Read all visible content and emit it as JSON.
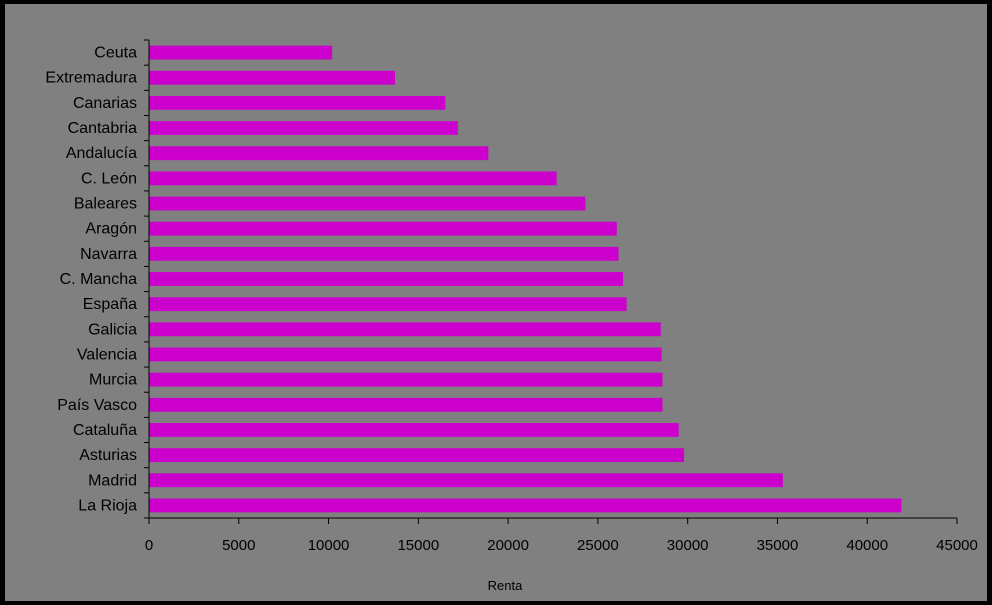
{
  "chart_data": {
    "type": "bar",
    "orientation": "horizontal",
    "categories": [
      "La Rioja",
      "Madrid",
      "Asturias",
      "Cataluña",
      "País Vasco",
      "Murcia",
      "Valencia",
      "Galicia",
      "España",
      "C. Mancha",
      "Navarra",
      "Aragón",
      "Baleares",
      "C. León",
      "Andalucía",
      "Cantabria",
      "Canarias",
      "Extremadura",
      "Ceuta"
    ],
    "values": [
      41900,
      35300,
      29800,
      29500,
      28600,
      28600,
      28550,
      28500,
      26600,
      26400,
      26150,
      26050,
      24300,
      22700,
      18900,
      17200,
      16500,
      13700,
      10200
    ],
    "xlabel": "Renta",
    "ylabel": "",
    "title": "",
    "xlim": [
      0,
      45000
    ],
    "xticks": [
      0,
      5000,
      10000,
      15000,
      20000,
      25000,
      30000,
      35000,
      40000,
      45000
    ],
    "grid": false,
    "legend": "none",
    "colors": {
      "bar": "#CC00CC",
      "plot_background": "#808080",
      "frame": "#000000",
      "text": "#000000"
    }
  }
}
